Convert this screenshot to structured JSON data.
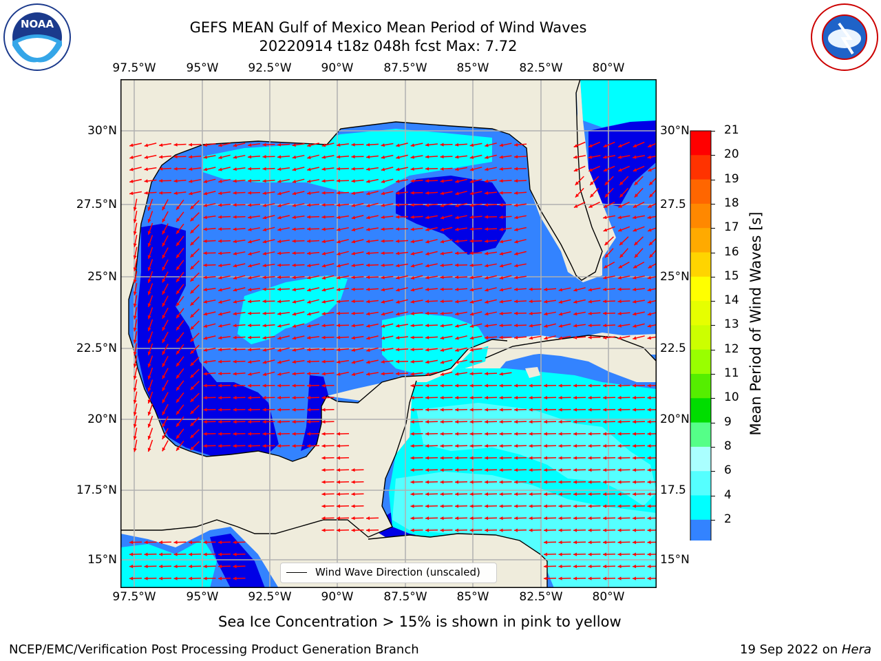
{
  "title": {
    "line1": "GEFS MEAN Gulf of Mexico Mean Period of Wind Waves",
    "line2": "20220914 t18z 048h fcst   Max: 7.72"
  },
  "map": {
    "lon_labels": [
      "97.5°W",
      "95°W",
      "92.5°W",
      "90°W",
      "87.5°W",
      "85°W",
      "82.5°W",
      "80°W"
    ],
    "lat_labels": [
      "30°N",
      "27.5°N",
      "25°N",
      "22.5°N",
      "20°N",
      "17.5°N",
      "15°N"
    ],
    "lat_labels_right": [
      "30°N",
      "27.5",
      "25°N",
      "22.5",
      "20°N",
      "17.5",
      "15°N"
    ],
    "legend_label": "Wind Wave Direction (unscaled)",
    "colors": {
      "land": "#efecdc",
      "dark_blue": "#0000e6",
      "mid_blue": "#3383ff",
      "cyan": "#00ffff",
      "light_cyan": "#55ffff",
      "pale_cyan": "#aaffff",
      "arrow": "#ff0000",
      "grid": "#b0b0b0"
    }
  },
  "colorbar": {
    "label": "Mean Period of Wind Waves [s]",
    "ticks": [
      "21",
      "20",
      "19",
      "18",
      "17",
      "16",
      "15",
      "14",
      "13",
      "12",
      "11",
      "10",
      "9",
      "8",
      "6",
      "4",
      "2"
    ],
    "colors": [
      "#ff0000",
      "#ff3300",
      "#ff6600",
      "#ff8800",
      "#ffaa00",
      "#ffd400",
      "#ffff00",
      "#e6ff00",
      "#ccff00",
      "#99ff00",
      "#55ee00",
      "#00dd00",
      "#55ff88",
      "#aaffff",
      "#55ffff",
      "#00ffff",
      "#3383ff"
    ],
    "extend_color": "#0000e6"
  },
  "logos": {
    "noaa_text": "NOAA",
    "noaa_ring": "NATIONAL OCEANIC AND ATMOSPHERIC ADMINISTRATION · U.S. DEPARTMENT OF COMMERCE",
    "nws_ring": "NATIONAL WEATHER SERVICE"
  },
  "footer": {
    "ice_note": "Sea Ice Concentration > 15% is shown in pink to yellow",
    "branch": "NCEP/EMC/Verification Post Processing Product Generation Branch",
    "date": "19 Sep 2022 on ",
    "host": "Hera"
  }
}
